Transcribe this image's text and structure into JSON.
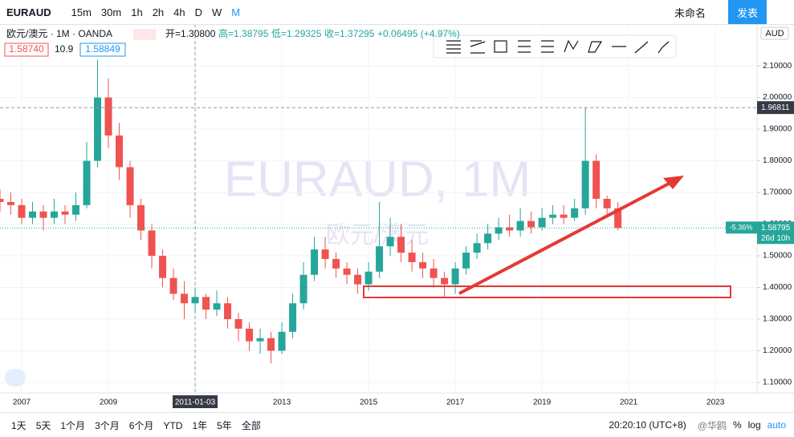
{
  "toolbar": {
    "symbol": "EURAUD",
    "intervals": [
      "15m",
      "30m",
      "1h",
      "2h",
      "4h",
      "D",
      "W",
      "M"
    ],
    "layout_name": "未命名",
    "publish": "发表"
  },
  "legend": {
    "title": "欧元/澳元 · 1M · OANDA",
    "open": "开=1.30800",
    "high": "高=1.38795",
    "low": "低=1.29325",
    "close": "收=1.37295",
    "change": "+0.06495 (+4.97%)",
    "bid": "1.58740",
    "spread": "10.9",
    "ask": "1.58849",
    "currency": "AUD"
  },
  "watermark": {
    "symbol": "EURAUD, 1M",
    "name": "欧元/澳元"
  },
  "badges": {
    "change": "-5.36%",
    "countdown": "26d 10h"
  },
  "bottom": {
    "ranges": [
      "1天",
      "5天",
      "1个月",
      "3个月",
      "6个月",
      "YTD",
      "1年",
      "5年",
      "全部"
    ],
    "clock": "20:20:10 (UTC+8)",
    "percent": "%",
    "log": "log",
    "auto": "auto",
    "brand": "@华鸥"
  },
  "chart_data": {
    "type": "candlestick",
    "up_color": "#26a69a",
    "down_color": "#ef5350",
    "x": [
      2006.5,
      2006.75,
      2007,
      2007.25,
      2007.5,
      2007.75,
      2008,
      2008.25,
      2008.5,
      2008.75,
      2009,
      2009.25,
      2009.5,
      2009.75,
      2010,
      2010.25,
      2010.5,
      2010.75,
      2011,
      2011.25,
      2011.5,
      2011.75,
      2012,
      2012.25,
      2012.5,
      2012.75,
      2013,
      2013.25,
      2013.5,
      2013.75,
      2014,
      2014.25,
      2014.5,
      2014.75,
      2015,
      2015.25,
      2015.5,
      2015.75,
      2016,
      2016.25,
      2016.5,
      2016.75,
      2017,
      2017.25,
      2017.5,
      2017.75,
      2018,
      2018.25,
      2018.5,
      2018.75,
      2019,
      2019.25,
      2019.5,
      2019.75,
      2020,
      2020.25,
      2020.5,
      2020.75
    ],
    "open": [
      1.68,
      1.67,
      1.66,
      1.62,
      1.64,
      1.62,
      1.64,
      1.63,
      1.66,
      1.8,
      2.0,
      1.88,
      1.78,
      1.66,
      1.58,
      1.5,
      1.43,
      1.38,
      1.35,
      1.37,
      1.33,
      1.35,
      1.3,
      1.27,
      1.23,
      1.24,
      1.2,
      1.26,
      1.35,
      1.44,
      1.52,
      1.49,
      1.46,
      1.44,
      1.41,
      1.45,
      1.53,
      1.56,
      1.51,
      1.48,
      1.46,
      1.43,
      1.41,
      1.46,
      1.51,
      1.54,
      1.57,
      1.59,
      1.58,
      1.61,
      1.59,
      1.62,
      1.63,
      1.62,
      1.65,
      1.8,
      1.68,
      1.65
    ],
    "high": [
      1.71,
      1.7,
      1.68,
      1.67,
      1.66,
      1.68,
      1.66,
      1.7,
      1.86,
      2.12,
      2.06,
      1.92,
      1.8,
      1.68,
      1.6,
      1.52,
      1.46,
      1.42,
      1.4,
      1.38,
      1.39,
      1.37,
      1.32,
      1.29,
      1.27,
      1.26,
      1.29,
      1.38,
      1.48,
      1.56,
      1.56,
      1.51,
      1.48,
      1.46,
      1.48,
      1.67,
      1.62,
      1.6,
      1.55,
      1.51,
      1.49,
      1.45,
      1.48,
      1.53,
      1.57,
      1.6,
      1.62,
      1.63,
      1.65,
      1.64,
      1.65,
      1.66,
      1.66,
      1.68,
      1.97,
      1.82,
      1.69,
      1.67
    ],
    "low": [
      1.64,
      1.63,
      1.6,
      1.6,
      1.58,
      1.6,
      1.6,
      1.61,
      1.65,
      1.78,
      1.84,
      1.74,
      1.62,
      1.55,
      1.46,
      1.4,
      1.36,
      1.3,
      1.32,
      1.3,
      1.31,
      1.27,
      1.23,
      1.2,
      1.19,
      1.16,
      1.19,
      1.24,
      1.33,
      1.42,
      1.46,
      1.43,
      1.41,
      1.38,
      1.39,
      1.43,
      1.5,
      1.48,
      1.45,
      1.43,
      1.4,
      1.37,
      1.38,
      1.44,
      1.49,
      1.52,
      1.55,
      1.56,
      1.56,
      1.57,
      1.58,
      1.6,
      1.6,
      1.61,
      1.63,
      1.65,
      1.62,
      1.58
    ],
    "close": [
      1.67,
      1.66,
      1.62,
      1.64,
      1.62,
      1.64,
      1.63,
      1.66,
      1.8,
      2.0,
      1.88,
      1.78,
      1.66,
      1.58,
      1.5,
      1.43,
      1.38,
      1.35,
      1.37,
      1.33,
      1.35,
      1.3,
      1.27,
      1.23,
      1.24,
      1.2,
      1.26,
      1.35,
      1.44,
      1.52,
      1.49,
      1.46,
      1.44,
      1.41,
      1.45,
      1.53,
      1.56,
      1.51,
      1.48,
      1.46,
      1.43,
      1.41,
      1.46,
      1.51,
      1.54,
      1.57,
      1.59,
      1.58,
      1.61,
      1.59,
      1.62,
      1.63,
      1.62,
      1.65,
      1.8,
      1.68,
      1.65,
      1.588
    ],
    "xlim": [
      2006.5,
      2023.96
    ],
    "ylim": [
      1.067,
      2.232
    ],
    "xticks": [
      2007,
      2009,
      {
        "value": 2011,
        "label": "2011-01-03"
      },
      2013,
      2015,
      2017,
      2019,
      2021,
      2023
    ],
    "yticks": [
      {
        "value": 1.1,
        "label": "1.10000"
      },
      {
        "value": 1.2,
        "label": "1.20000"
      },
      {
        "value": 1.3,
        "label": "1.30000"
      },
      {
        "value": 1.4,
        "label": "1.40000"
      },
      {
        "value": 1.5,
        "label": "1.50000"
      },
      {
        "value": 1.6,
        "label": "1.60000"
      },
      {
        "value": 1.7,
        "label": "1.70000"
      },
      {
        "value": 1.8,
        "label": "1.80000"
      },
      {
        "value": 1.9,
        "label": "1.90000"
      },
      {
        "value": 2.0,
        "label": "2.00000"
      },
      {
        "value": 2.1,
        "label": "2.10000"
      }
    ],
    "last_price": {
      "value": 1.58795,
      "label": "1.58795"
    },
    "crosshair": {
      "value": 1.96811,
      "label": "1.96811"
    }
  }
}
